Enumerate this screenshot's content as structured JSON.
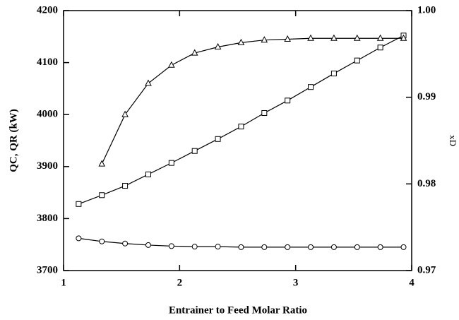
{
  "chart_data": {
    "type": "line",
    "xlabel": "Entrainer to Feed Molar Ratio",
    "ylabel": "QC, QR (kW)",
    "y2label": "xD",
    "xlim": [
      1,
      4
    ],
    "xticks": [
      1,
      2,
      3,
      4
    ],
    "ylim": [
      3700,
      4200
    ],
    "yticks": [
      3700,
      3800,
      3900,
      4000,
      4100,
      4200
    ],
    "y2lim": [
      0.97,
      1.0
    ],
    "y2ticks": [
      0.97,
      0.98,
      0.99,
      {
        "value": 1.0,
        "label": "1.00"
      }
    ],
    "series": [
      {
        "marker": "square",
        "color": "#000000",
        "x": [
          1.13,
          1.33,
          1.53,
          1.73,
          1.93,
          2.13,
          2.33,
          2.53,
          2.73,
          2.93,
          3.13,
          3.33,
          3.53,
          3.73,
          3.93
        ],
        "values": [
          3828,
          3845,
          3863,
          3885,
          3907,
          3930,
          3953,
          3977,
          4003,
          4027,
          4053,
          4079,
          4104,
          4129,
          4152
        ]
      },
      {
        "marker": "circle",
        "color": "#000000",
        "x": [
          1.13,
          1.33,
          1.53,
          1.73,
          1.93,
          2.13,
          2.33,
          2.53,
          2.73,
          2.93,
          3.13,
          3.33,
          3.53,
          3.73,
          3.93
        ],
        "values": [
          3762,
          3756,
          3752,
          3749,
          3747,
          3746,
          3746,
          3745,
          3745,
          3745,
          3745,
          3745,
          3745,
          3745,
          3745
        ]
      },
      {
        "marker": "triangle",
        "color": "#000000",
        "axis": "y2",
        "x": [
          1.33,
          1.53,
          1.73,
          1.93,
          2.13,
          2.33,
          2.53,
          2.73,
          2.93,
          3.13,
          3.33,
          3.53,
          3.73,
          3.93
        ],
        "values": [
          0.9823,
          0.988,
          0.9916,
          0.9937,
          0.9951,
          0.9958,
          0.9963,
          0.9966,
          0.9967,
          0.9968,
          0.9968,
          0.9968,
          0.9968,
          0.9968
        ]
      }
    ]
  }
}
